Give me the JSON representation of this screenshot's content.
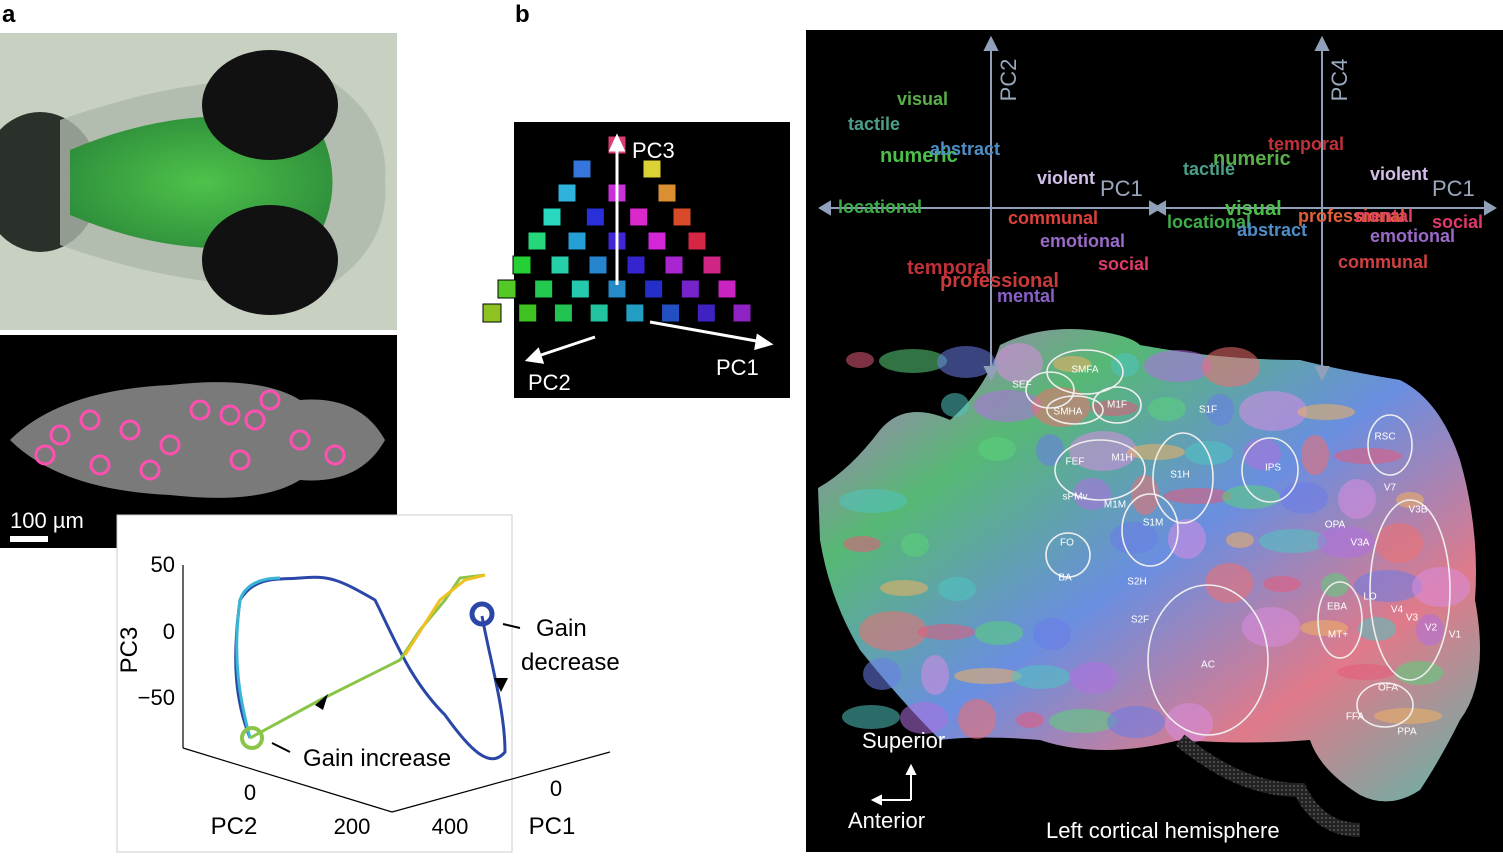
{
  "panel_a": {
    "label": "a",
    "scale_bar": "100 µm",
    "plot": {
      "y_label": "PC3",
      "y_ticks": [
        "50",
        "0",
        "−50"
      ],
      "x_label": "PC2",
      "x_ticks": [
        "0",
        "200"
      ],
      "z_label": "PC1",
      "z_ticks": [
        "400",
        "0"
      ],
      "gain_increase": "Gain increase",
      "gain_decrease": [
        "Gain",
        "decrease"
      ]
    }
  },
  "panel_b": {
    "label": "b",
    "cube": {
      "axes": [
        "PC3",
        "PC2",
        "PC1"
      ]
    },
    "semantic_space": {
      "left": {
        "axes": [
          "PC2",
          "PC1"
        ],
        "words": [
          "visual",
          "tactile",
          "numeric",
          "abstract",
          "violent",
          "locational",
          "communal",
          "emotional",
          "social",
          "temporal",
          "professional",
          "mental"
        ]
      },
      "right": {
        "axes": [
          "PC4",
          "PC1"
        ],
        "words": [
          "temporal",
          "numeric",
          "tactile",
          "violent",
          "visual",
          "locational",
          "professional",
          "mental",
          "abstract",
          "emotional",
          "social",
          "communal"
        ]
      }
    },
    "flatmap": {
      "regions": [
        "SMFA",
        "SEF",
        "SMHA",
        "M1F",
        "S1F",
        "RSC",
        "FEF",
        "M1H",
        "S1H",
        "IPS",
        "sPMv",
        "M1M",
        "S1M",
        "V7",
        "V3B",
        "OPA",
        "V3A",
        "FO",
        "BA",
        "S2H",
        "LO",
        "EBA",
        "V4",
        "V3",
        "V2",
        "V1",
        "S2F",
        "MT+",
        "AC",
        "OFA",
        "FFA",
        "PPA"
      ],
      "orientation": [
        "Superior",
        "Anterior"
      ],
      "caption": "Left cortical hemisphere"
    }
  }
}
